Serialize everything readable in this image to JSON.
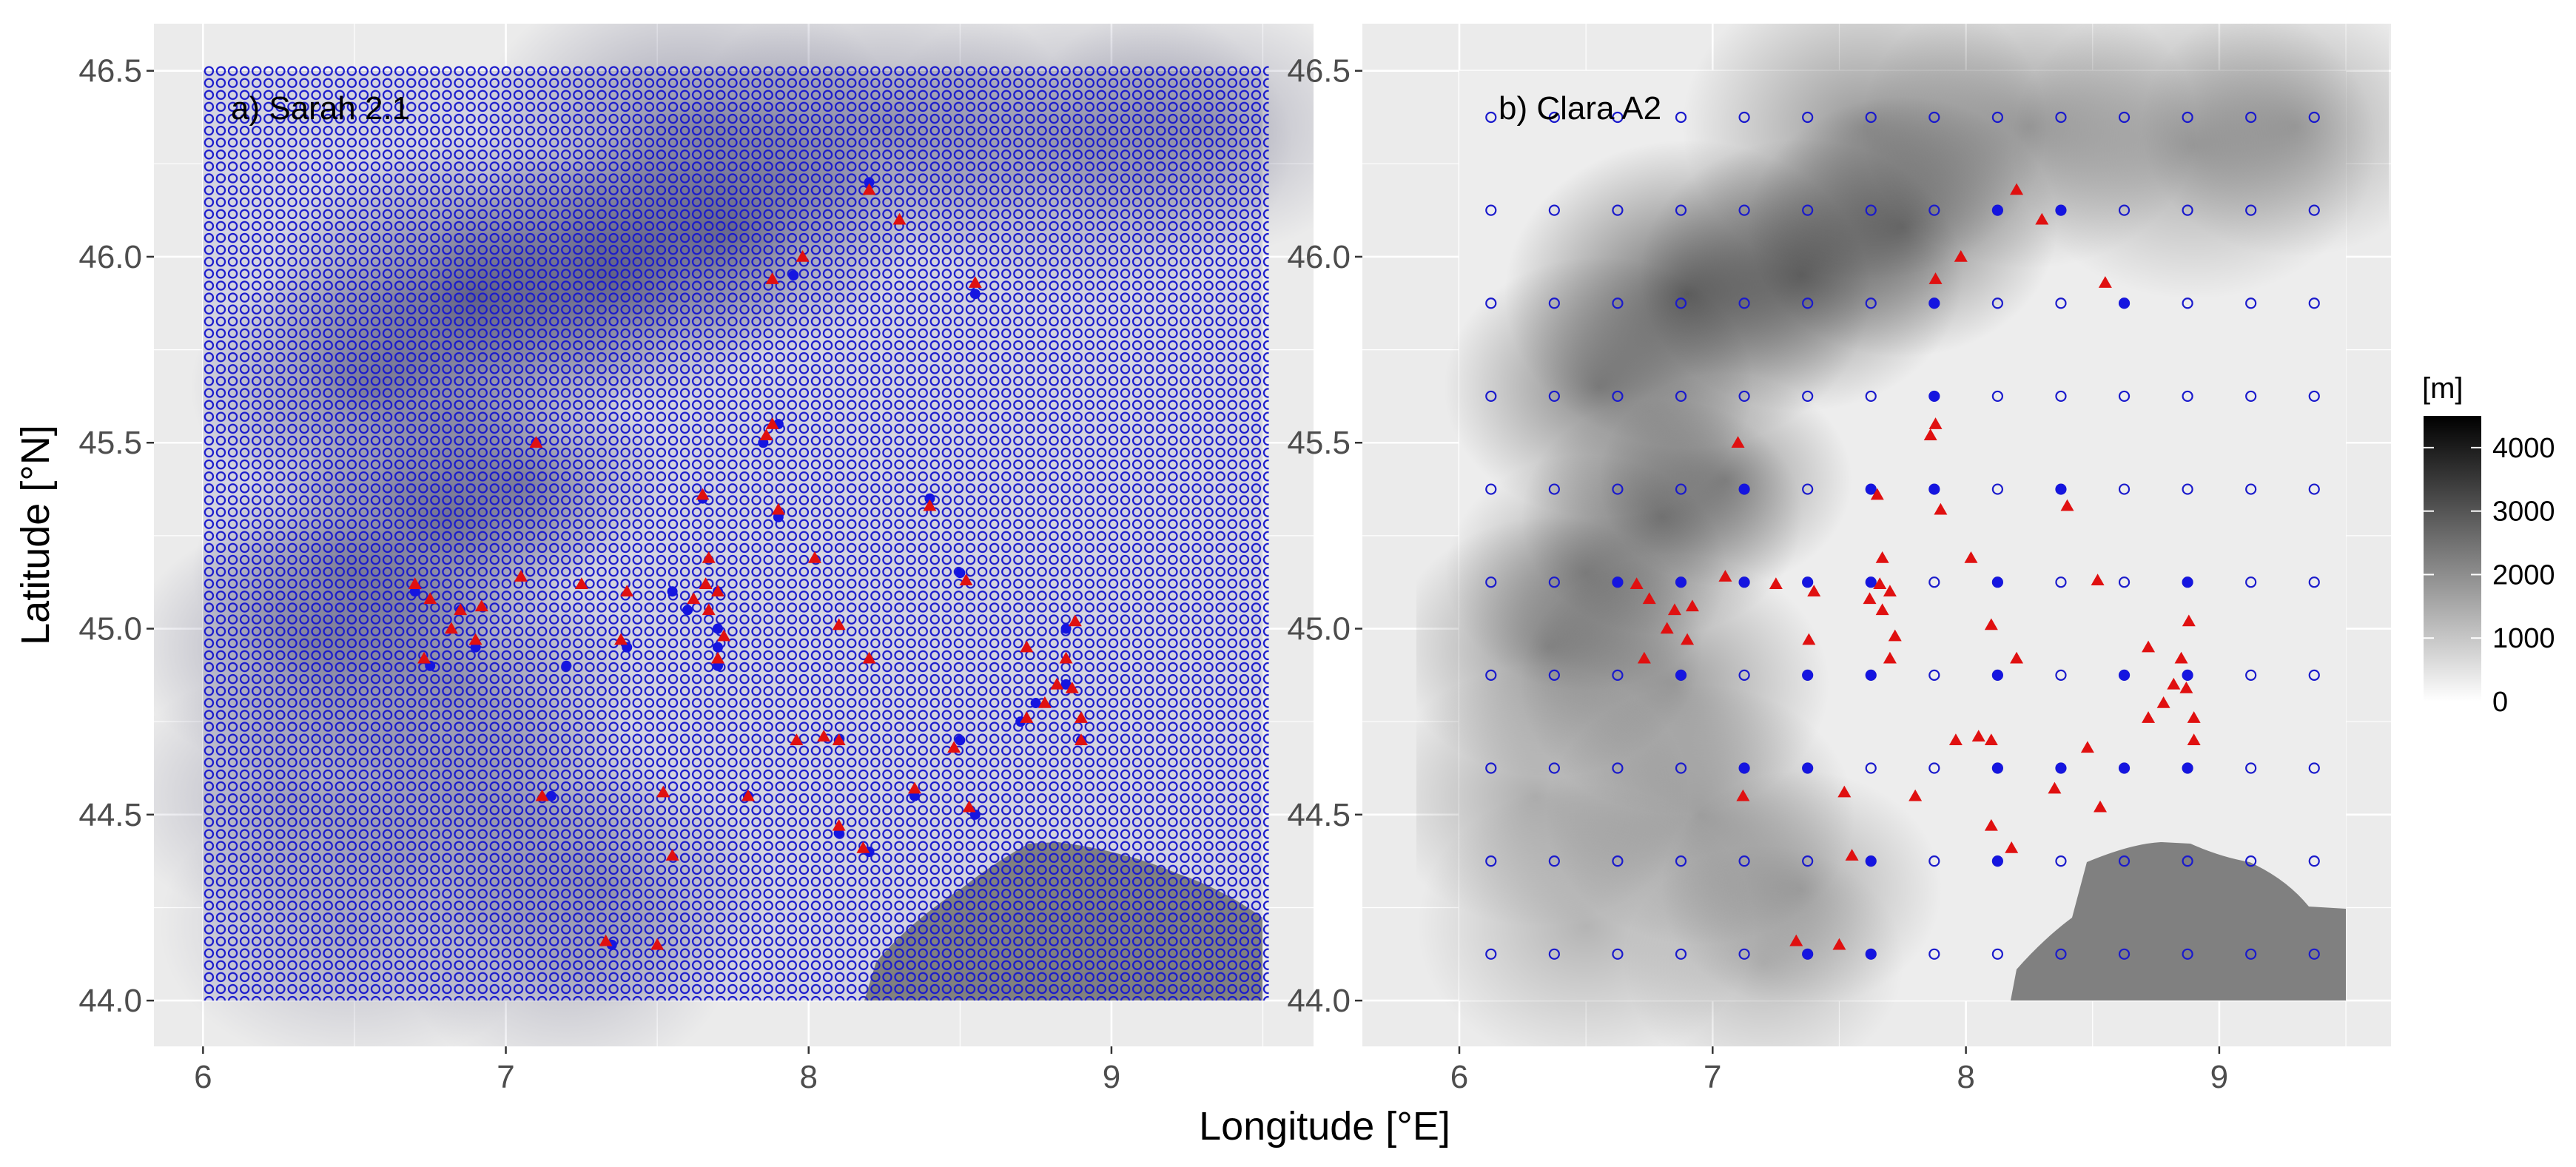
{
  "chart_data": {
    "type": "scatter",
    "xlabel": "Longitude [°E]",
    "ylabel": "Latitude [°N]",
    "xlim": [
      5.85,
      9.68
    ],
    "ylim": [
      43.88,
      46.62
    ],
    "x_ticks": [
      "6",
      "7",
      "8",
      "9"
    ],
    "y_ticks": [
      "44.0",
      "44.5",
      "45.0",
      "45.5",
      "46.0",
      "46.5"
    ],
    "grid": true,
    "legend": {
      "title": "[m]",
      "placement": "right",
      "type": "colorbar",
      "range": [
        0,
        4500
      ],
      "ticks": [
        "4000",
        "3000",
        "2000",
        "1000",
        "0"
      ],
      "colors": [
        "#ffffff",
        "#000000"
      ]
    },
    "marker_colors": {
      "grid_cell": "#1a1acc",
      "selected_cell": "#1515e0",
      "station": "#e01010",
      "sea": "#808080"
    },
    "stations": [
      [
        8.2,
        46.18
      ],
      [
        8.3,
        46.1
      ],
      [
        8.55,
        45.93
      ],
      [
        7.98,
        46.0
      ],
      [
        7.88,
        45.94
      ],
      [
        7.1,
        45.5
      ],
      [
        7.88,
        45.55
      ],
      [
        7.86,
        45.52
      ],
      [
        7.65,
        45.36
      ],
      [
        7.9,
        45.32
      ],
      [
        8.4,
        45.33
      ],
      [
        8.02,
        45.19
      ],
      [
        7.67,
        45.19
      ],
      [
        7.05,
        45.14
      ],
      [
        6.7,
        45.12
      ],
      [
        6.75,
        45.08
      ],
      [
        6.85,
        45.05
      ],
      [
        6.9,
        44.97
      ],
      [
        6.82,
        45.0
      ],
      [
        6.92,
        45.06
      ],
      [
        7.25,
        45.12
      ],
      [
        7.4,
        45.1
      ],
      [
        7.62,
        45.08
      ],
      [
        7.66,
        45.12
      ],
      [
        7.7,
        45.1
      ],
      [
        7.67,
        45.05
      ],
      [
        7.72,
        44.98
      ],
      [
        7.7,
        44.92
      ],
      [
        7.38,
        44.97
      ],
      [
        6.73,
        44.92
      ],
      [
        8.1,
        45.01
      ],
      [
        8.2,
        44.92
      ],
      [
        8.52,
        45.13
      ],
      [
        8.72,
        44.95
      ],
      [
        8.88,
        45.02
      ],
      [
        8.85,
        44.92
      ],
      [
        8.82,
        44.85
      ],
      [
        8.87,
        44.84
      ],
      [
        8.9,
        44.76
      ],
      [
        8.72,
        44.76
      ],
      [
        8.78,
        44.8
      ],
      [
        8.9,
        44.7
      ],
      [
        7.96,
        44.7
      ],
      [
        8.05,
        44.71
      ],
      [
        8.1,
        44.7
      ],
      [
        8.48,
        44.68
      ],
      [
        8.35,
        44.57
      ],
      [
        7.8,
        44.55
      ],
      [
        7.12,
        44.55
      ],
      [
        7.52,
        44.56
      ],
      [
        8.1,
        44.47
      ],
      [
        8.53,
        44.52
      ],
      [
        8.18,
        44.41
      ],
      [
        7.55,
        44.39
      ],
      [
        7.33,
        44.16
      ],
      [
        7.5,
        44.15
      ]
    ],
    "panels": [
      {
        "label": "a) Sarah 2.1",
        "grid_resolution_deg": 0.05,
        "selected_cells": [
          [
            8.2,
            46.2
          ],
          [
            7.95,
            45.95
          ],
          [
            8.55,
            45.9
          ],
          [
            7.9,
            45.55
          ],
          [
            7.85,
            45.5
          ],
          [
            7.1,
            45.5
          ],
          [
            7.9,
            45.3
          ],
          [
            8.4,
            45.35
          ],
          [
            7.65,
            45.35
          ],
          [
            7.7,
            45.1
          ],
          [
            7.55,
            45.1
          ],
          [
            7.6,
            45.05
          ],
          [
            7.7,
            45.0
          ],
          [
            7.7,
            44.95
          ],
          [
            7.7,
            44.9
          ],
          [
            6.7,
            45.1
          ],
          [
            6.85,
            45.05
          ],
          [
            6.9,
            44.95
          ],
          [
            6.75,
            44.9
          ],
          [
            7.4,
            44.95
          ],
          [
            8.5,
            45.15
          ],
          [
            8.85,
            45.0
          ],
          [
            8.85,
            44.85
          ],
          [
            8.75,
            44.8
          ],
          [
            8.7,
            44.75
          ],
          [
            8.9,
            44.7
          ],
          [
            8.1,
            44.7
          ],
          [
            8.5,
            44.7
          ],
          [
            8.35,
            44.55
          ],
          [
            7.8,
            44.55
          ],
          [
            7.15,
            44.55
          ],
          [
            8.1,
            44.45
          ],
          [
            8.55,
            44.5
          ],
          [
            8.2,
            44.4
          ],
          [
            7.35,
            44.15
          ],
          [
            7.2,
            44.9
          ]
        ]
      },
      {
        "label": "b) Clara A2",
        "grid_resolution_deg": 0.25,
        "selected_cells": [
          [
            8.125,
            46.125
          ],
          [
            8.375,
            46.125
          ],
          [
            7.875,
            45.875
          ],
          [
            8.625,
            45.875
          ],
          [
            7.875,
            45.625
          ],
          [
            7.125,
            45.375
          ],
          [
            7.625,
            45.375
          ],
          [
            7.875,
            45.375
          ],
          [
            8.375,
            45.375
          ],
          [
            6.625,
            45.125
          ],
          [
            6.875,
            45.125
          ],
          [
            7.125,
            45.125
          ],
          [
            7.375,
            45.125
          ],
          [
            7.625,
            45.125
          ],
          [
            8.125,
            45.125
          ],
          [
            8.875,
            45.125
          ],
          [
            6.875,
            44.875
          ],
          [
            7.375,
            44.875
          ],
          [
            7.625,
            44.875
          ],
          [
            8.125,
            44.875
          ],
          [
            8.625,
            44.875
          ],
          [
            8.875,
            44.875
          ],
          [
            7.125,
            44.625
          ],
          [
            7.375,
            44.625
          ],
          [
            8.125,
            44.625
          ],
          [
            8.375,
            44.625
          ],
          [
            8.625,
            44.625
          ],
          [
            8.875,
            44.625
          ],
          [
            7.625,
            44.375
          ],
          [
            8.125,
            44.375
          ],
          [
            7.375,
            44.125
          ],
          [
            7.625,
            44.125
          ]
        ]
      }
    ]
  }
}
